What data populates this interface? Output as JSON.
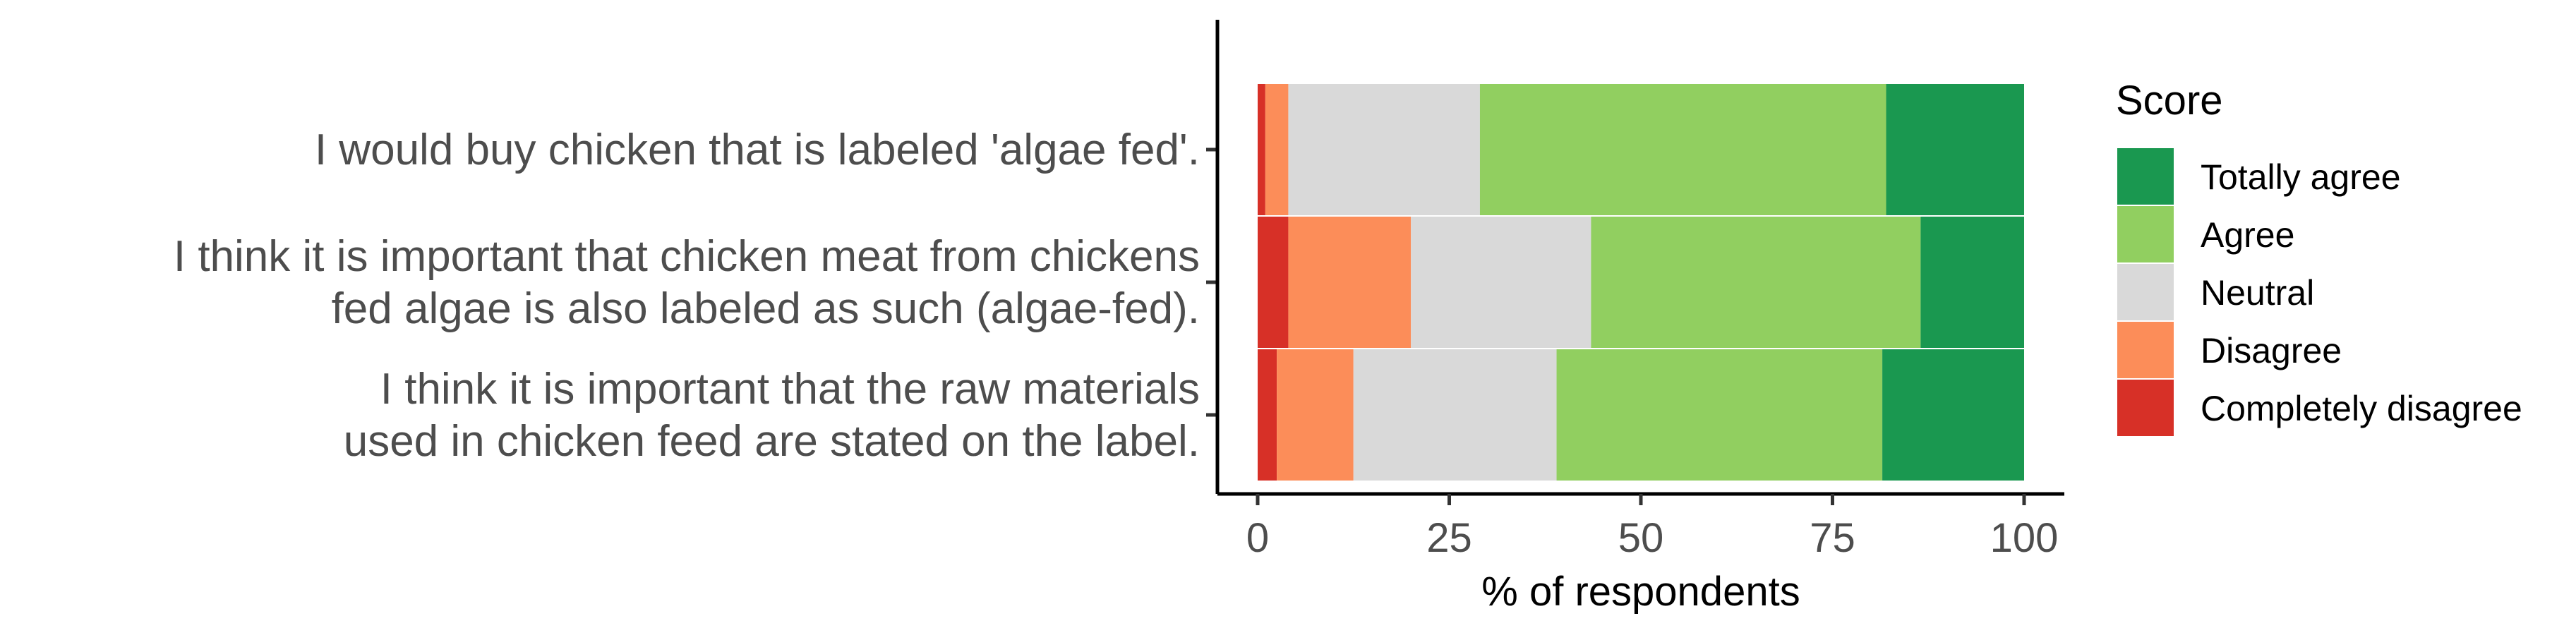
{
  "chart_data": {
    "type": "bar",
    "orientation": "horizontal",
    "stacked": true,
    "categories": [
      [
        "I would buy chicken that is labeled 'algae fed'."
      ],
      [
        "I think it is important that chicken meat from chickens",
        "fed algae is also labeled as such (algae-fed)."
      ],
      [
        "I think it is important that the raw materials",
        "used in chicken feed are stated on the label."
      ]
    ],
    "series": [
      {
        "name": "Completely disagree",
        "color": "#d73027",
        "values": [
          1,
          4,
          2.5
        ]
      },
      {
        "name": "Disagree",
        "color": "#fc8d59",
        "values": [
          3,
          16,
          10
        ]
      },
      {
        "name": "Neutral",
        "color": "#d9d9d9",
        "values": [
          25,
          23.5,
          26.5
        ]
      },
      {
        "name": "Agree",
        "color": "#91cf60",
        "values": [
          53,
          43,
          42.5
        ]
      },
      {
        "name": "Totally agree",
        "color": "#1a9850",
        "values": [
          18,
          13.5,
          18.5
        ]
      }
    ],
    "xlabel": "% of respondents",
    "ylabel": "",
    "xlim": [
      0,
      100
    ],
    "xticks": [
      0,
      25,
      50,
      75,
      100
    ],
    "grid": false,
    "legend": {
      "title": "Score",
      "position": "right",
      "order": [
        "Totally agree",
        "Agree",
        "Neutral",
        "Disagree",
        "Completely disagree"
      ]
    }
  }
}
